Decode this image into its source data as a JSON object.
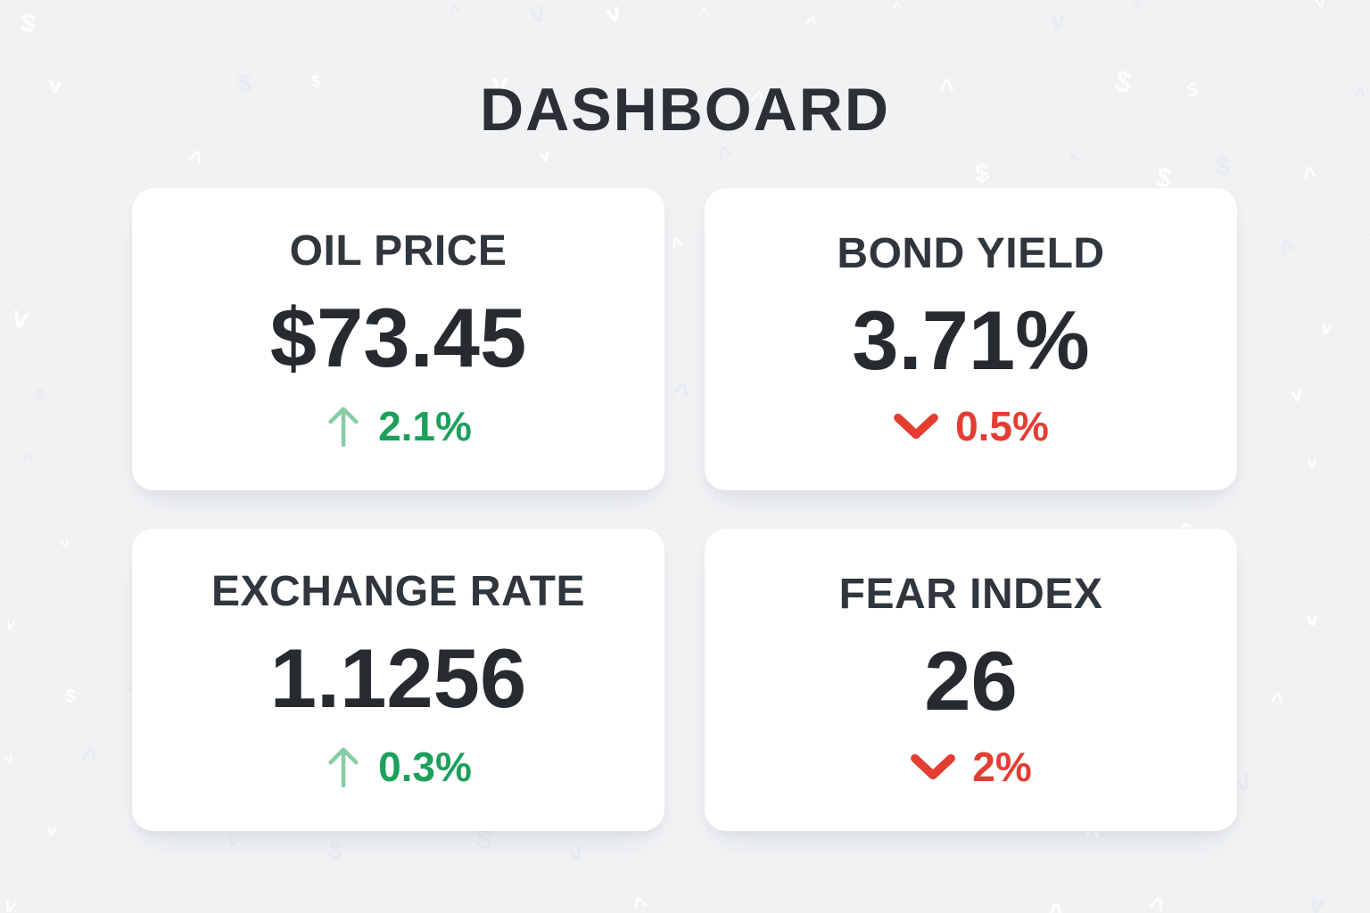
{
  "page": {
    "title": "DASHBOARD"
  },
  "colors": {
    "background": "#f0f2f4",
    "card_background": "#ffffff",
    "title_text": "#2a3036",
    "label_text": "#30363d",
    "value_text": "#262b30",
    "positive_text": "#1da05b",
    "positive_icon": "#88cba6",
    "negative_text": "#e43d31",
    "negative_icon": "#e43d31"
  },
  "cards": [
    {
      "id": "oil-price",
      "label": "OIL PRICE",
      "value": "$73.45",
      "direction": "up",
      "change": "2.1%",
      "icon": "up-arrow-icon"
    },
    {
      "id": "bond-yield",
      "label": "BOND YIELD",
      "value": "3.71%",
      "direction": "down",
      "change": "0.5%",
      "icon": "down-chevron-icon"
    },
    {
      "id": "exchange-rate",
      "label": "EXCHANGE RATE",
      "value": "1.1256",
      "direction": "up",
      "change": "0.3%",
      "icon": "up-arrow-icon"
    },
    {
      "id": "fear-index",
      "label": "FEAR INDEX",
      "value": "26",
      "direction": "down",
      "change": "2%",
      "icon": "down-chevron-icon"
    }
  ]
}
